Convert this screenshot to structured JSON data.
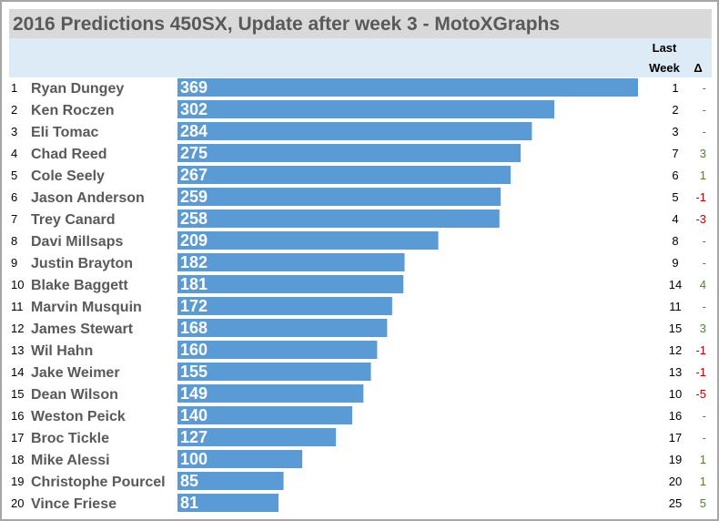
{
  "title": "2016 Predictions 450SX, Update after week 3 - MotoXGraphs",
  "headers": {
    "last_week_line1": "Last",
    "last_week_line2": "Week",
    "delta": "Δ"
  },
  "colors": {
    "bar": "#5b9bd5",
    "up": "#548235",
    "down": "#c00000",
    "neutral": "#548235"
  },
  "chart_data": {
    "type": "bar",
    "orientation": "horizontal",
    "title": "2016 Predictions 450SX, Update after week 3 - MotoXGraphs",
    "categories": [
      "Ryan Dungey",
      "Ken Roczen",
      "Eli Tomac",
      "Chad Reed",
      "Cole Seely",
      "Jason Anderson",
      "Trey Canard",
      "Davi Millsaps",
      "Justin Brayton",
      "Blake Baggett",
      "Marvin Musquin",
      "James Stewart",
      "Wil Hahn",
      "Jake Weimer",
      "Dean Wilson",
      "Weston Peick",
      "Broc Tickle",
      "Mike Alessi",
      "Christophe Pourcel",
      "Vince Friese"
    ],
    "values": [
      369,
      302,
      284,
      275,
      267,
      259,
      258,
      209,
      182,
      181,
      172,
      168,
      160,
      155,
      149,
      140,
      127,
      100,
      85,
      81
    ],
    "ranks": [
      "1",
      "2",
      "3",
      "4",
      "5",
      "6",
      "7",
      "8",
      "9",
      "10",
      "11",
      "12",
      "13",
      "14",
      "15",
      "16",
      "17",
      "18",
      "19",
      "20"
    ],
    "last_week": [
      "1",
      "2",
      "3",
      "7",
      "6",
      "5",
      "4",
      "8",
      "9",
      "14",
      "11",
      "15",
      "12",
      "13",
      "10",
      "16",
      "17",
      "19",
      "20",
      "25"
    ],
    "delta": [
      "-",
      "-",
      "-",
      "3",
      "1",
      "-1",
      "-3",
      "-",
      "-",
      "4",
      "-",
      "3",
      "-1",
      "-1",
      "-5",
      "-",
      "-",
      "1",
      "1",
      "5"
    ],
    "xlim": [
      0,
      369
    ]
  }
}
